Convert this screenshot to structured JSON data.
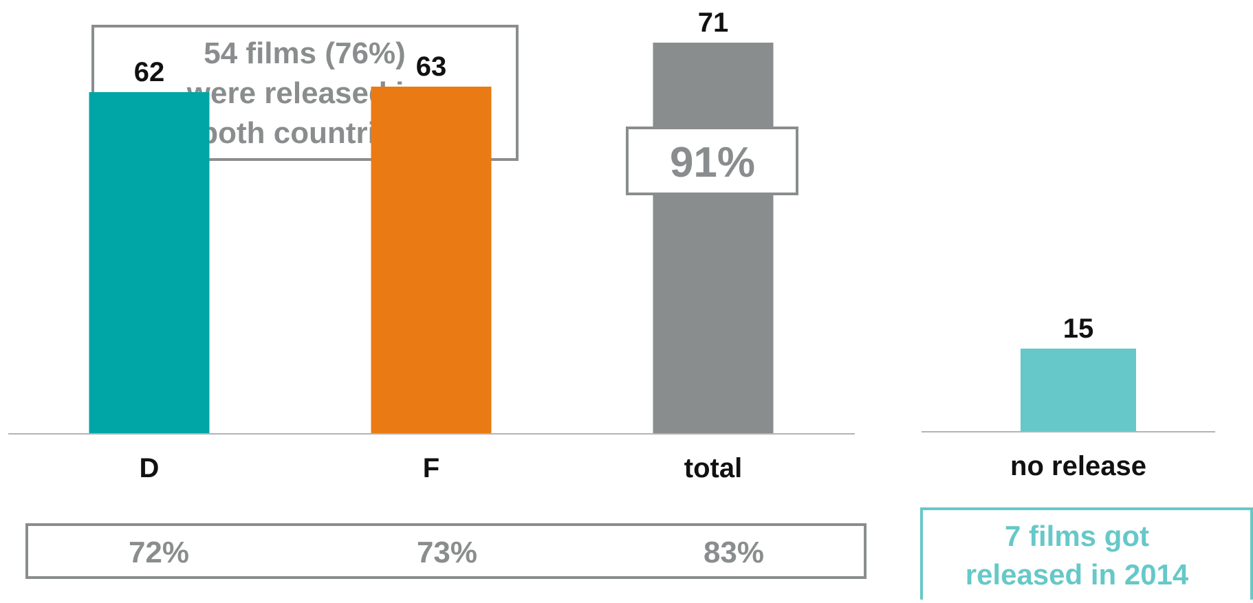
{
  "chart_data": [
    {
      "type": "bar",
      "categories": [
        "D",
        "F",
        "total"
      ],
      "values": [
        62,
        63,
        71
      ],
      "colors": [
        "#00a5a5",
        "#ea7b14",
        "#8a8d8d"
      ],
      "percent_row": [
        "72%",
        "73%",
        "83%"
      ],
      "total_percent_label": "91%",
      "annotation": [
        "54 films (76%)",
        "were released in",
        "both countries"
      ],
      "ylim": [
        0,
        71
      ],
      "grid": false
    },
    {
      "type": "bar",
      "categories": [
        "no release"
      ],
      "values": [
        15
      ],
      "colors": [
        "#66c8c8"
      ],
      "annotation": [
        "7 films got",
        "released in 2014"
      ],
      "ylim": [
        0,
        71
      ],
      "grid": false
    }
  ],
  "colors": {
    "label_text": "#111111",
    "annotation_gray": "#8a8d8d",
    "annotation_teal": "#66c8c8",
    "axis": "#9a9a9a"
  }
}
